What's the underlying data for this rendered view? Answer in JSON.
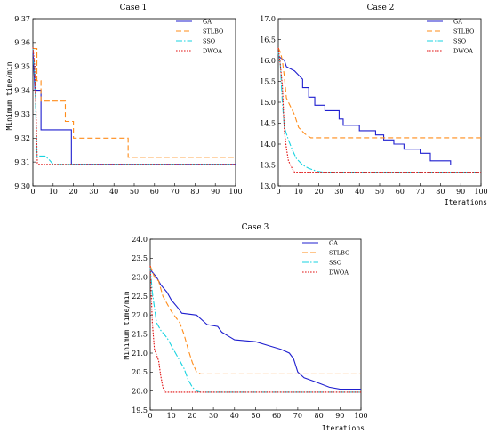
{
  "series_styles": {
    "GA": {
      "color": "#1f1fcf",
      "dash": ""
    },
    "STLBO": {
      "color": "#ff8c1a",
      "dash": "6,3"
    },
    "SSO": {
      "color": "#19d3e0",
      "dash": "7,2,1.5,2"
    },
    "DWOA": {
      "color": "#e01010",
      "dash": "1.6,1.4"
    }
  },
  "chart_data": [
    {
      "type": "line",
      "title": "Case 1",
      "xlabel": "",
      "ylabel": "Minimum time/min",
      "xlim": [
        0,
        100
      ],
      "ylim": [
        9.3,
        9.37
      ],
      "xticks": [
        0,
        10,
        20,
        30,
        40,
        50,
        60,
        70,
        80,
        90,
        100
      ],
      "yticks": [
        "9.30",
        "9.31",
        "9.32",
        "9.33",
        "9.34",
        "9.35",
        "9.36",
        "9.37"
      ],
      "legend": "top-right",
      "series": [
        {
          "name": "GA",
          "points": [
            [
              0,
              9.357
            ],
            [
              1,
              9.34
            ],
            [
              4,
              9.34
            ],
            [
              4,
              9.3235
            ],
            [
              19,
              9.3235
            ],
            [
              19,
              9.309
            ],
            [
              100,
              9.309
            ]
          ]
        },
        {
          "name": "STLBO",
          "points": [
            [
              0,
              9.3575
            ],
            [
              2,
              9.3575
            ],
            [
              2,
              9.344
            ],
            [
              4,
              9.344
            ],
            [
              4,
              9.3355
            ],
            [
              16,
              9.3355
            ],
            [
              16,
              9.327
            ],
            [
              20,
              9.327
            ],
            [
              20,
              9.32
            ],
            [
              47,
              9.32
            ],
            [
              47,
              9.312
            ],
            [
              100,
              9.312
            ]
          ]
        },
        {
          "name": "SSO",
          "points": [
            [
              0,
              9.358
            ],
            [
              1,
              9.345
            ],
            [
              2,
              9.3125
            ],
            [
              6,
              9.3125
            ],
            [
              8,
              9.311
            ],
            [
              10,
              9.309
            ],
            [
              100,
              9.309
            ]
          ]
        },
        {
          "name": "DWOA",
          "points": [
            [
              0,
              9.358
            ],
            [
              0.8,
              9.351
            ],
            [
              1.5,
              9.333
            ],
            [
              2.2,
              9.3095
            ],
            [
              3,
              9.309
            ],
            [
              100,
              9.309
            ]
          ]
        }
      ]
    },
    {
      "type": "line",
      "title": "Case 2",
      "xlabel": "Iterations",
      "ylabel": "",
      "xlim": [
        0,
        100
      ],
      "ylim": [
        13.0,
        17.0
      ],
      "xticks": [
        0,
        10,
        20,
        30,
        40,
        50,
        60,
        70,
        80,
        90,
        100
      ],
      "yticks": [
        "13.0",
        "13.5",
        "14.0",
        "14.5",
        "15.0",
        "15.5",
        "16.0",
        "16.5",
        "17.0"
      ],
      "legend": "top-right",
      "series": [
        {
          "name": "GA",
          "points": [
            [
              0,
              16.1
            ],
            [
              3,
              16.0
            ],
            [
              4,
              15.85
            ],
            [
              8,
              15.75
            ],
            [
              10,
              15.65
            ],
            [
              12,
              15.55
            ],
            [
              12,
              15.35
            ],
            [
              15,
              15.35
            ],
            [
              15,
              15.12
            ],
            [
              18,
              15.12
            ],
            [
              18,
              14.93
            ],
            [
              23,
              14.93
            ],
            [
              23,
              14.8
            ],
            [
              30,
              14.8
            ],
            [
              30,
              14.6
            ],
            [
              32,
              14.6
            ],
            [
              32,
              14.45
            ],
            [
              40,
              14.45
            ],
            [
              40,
              14.32
            ],
            [
              48,
              14.32
            ],
            [
              48,
              14.22
            ],
            [
              52,
              14.22
            ],
            [
              52,
              14.1
            ],
            [
              57,
              14.1
            ],
            [
              57,
              14.0
            ],
            [
              62,
              14.0
            ],
            [
              62,
              13.88
            ],
            [
              70,
              13.88
            ],
            [
              70,
              13.78
            ],
            [
              75,
              13.78
            ],
            [
              75,
              13.6
            ],
            [
              85,
              13.6
            ],
            [
              85,
              13.5
            ],
            [
              100,
              13.5
            ]
          ]
        },
        {
          "name": "STLBO",
          "points": [
            [
              0,
              16.3
            ],
            [
              1,
              16.2
            ],
            [
              2,
              16.0
            ],
            [
              3,
              15.6
            ],
            [
              4,
              15.1
            ],
            [
              6,
              14.9
            ],
            [
              8,
              14.7
            ],
            [
              10,
              14.4
            ],
            [
              13,
              14.25
            ],
            [
              16,
              14.15
            ],
            [
              100,
              14.15
            ]
          ]
        },
        {
          "name": "SSO",
          "points": [
            [
              0,
              16.2
            ],
            [
              1,
              15.9
            ],
            [
              2,
              15.0
            ],
            [
              3,
              14.4
            ],
            [
              5,
              14.1
            ],
            [
              7,
              13.85
            ],
            [
              9,
              13.65
            ],
            [
              12,
              13.5
            ],
            [
              15,
              13.42
            ],
            [
              19,
              13.35
            ],
            [
              22,
              13.33
            ],
            [
              100,
              13.33
            ]
          ]
        },
        {
          "name": "DWOA",
          "points": [
            [
              0,
              16.3
            ],
            [
              1,
              15.9
            ],
            [
              2,
              15.4
            ],
            [
              3,
              14.3
            ],
            [
              4,
              13.9
            ],
            [
              5,
              13.6
            ],
            [
              6,
              13.5
            ],
            [
              7,
              13.4
            ],
            [
              8,
              13.33
            ],
            [
              100,
              13.33
            ]
          ]
        }
      ]
    },
    {
      "type": "line",
      "title": "Case 3",
      "xlabel": "Iterations",
      "ylabel": "Minimum time/min",
      "xlim": [
        0,
        100
      ],
      "ylim": [
        19.5,
        24.0
      ],
      "xticks": [
        0,
        10,
        20,
        30,
        40,
        50,
        60,
        70,
        80,
        90,
        100
      ],
      "yticks": [
        "19.5",
        "20.0",
        "20.5",
        "21.0",
        "21.5",
        "22.0",
        "22.5",
        "23.0",
        "23.5",
        "24.0"
      ],
      "legend": "top-right",
      "series": [
        {
          "name": "GA",
          "points": [
            [
              0,
              23.2
            ],
            [
              3,
              23.0
            ],
            [
              5,
              22.8
            ],
            [
              8,
              22.6
            ],
            [
              10,
              22.4
            ],
            [
              13,
              22.2
            ],
            [
              15,
              22.05
            ],
            [
              22,
              22.0
            ],
            [
              25,
              21.85
            ],
            [
              27,
              21.75
            ],
            [
              32,
              21.7
            ],
            [
              34,
              21.55
            ],
            [
              37,
              21.45
            ],
            [
              40,
              21.35
            ],
            [
              50,
              21.3
            ],
            [
              56,
              21.2
            ],
            [
              62,
              21.1
            ],
            [
              66,
              21.0
            ],
            [
              68,
              20.85
            ],
            [
              70,
              20.5
            ],
            [
              73,
              20.35
            ],
            [
              78,
              20.25
            ],
            [
              85,
              20.1
            ],
            [
              90,
              20.05
            ],
            [
              100,
              20.05
            ]
          ]
        },
        {
          "name": "STLBO",
          "points": [
            [
              0,
              23.3
            ],
            [
              2,
              23.0
            ],
            [
              4,
              22.9
            ],
            [
              6,
              22.5
            ],
            [
              8,
              22.3
            ],
            [
              10,
              22.1
            ],
            [
              14,
              21.8
            ],
            [
              16,
              21.5
            ],
            [
              18,
              21.1
            ],
            [
              20,
              20.75
            ],
            [
              22,
              20.5
            ],
            [
              24,
              20.45
            ],
            [
              100,
              20.45
            ]
          ]
        },
        {
          "name": "SSO",
          "points": [
            [
              0,
              23.25
            ],
            [
              1,
              22.6
            ],
            [
              2,
              22.2
            ],
            [
              3,
              21.8
            ],
            [
              5,
              21.6
            ],
            [
              8,
              21.4
            ],
            [
              10,
              21.2
            ],
            [
              12,
              21.0
            ],
            [
              14,
              20.8
            ],
            [
              16,
              20.6
            ],
            [
              18,
              20.3
            ],
            [
              20,
              20.1
            ],
            [
              22,
              20.0
            ],
            [
              24,
              19.97
            ],
            [
              100,
              19.97
            ]
          ]
        },
        {
          "name": "DWOA",
          "points": [
            [
              0,
              23.3
            ],
            [
              1,
              21.8
            ],
            [
              2,
              21.1
            ],
            [
              4,
              20.8
            ],
            [
              5,
              20.4
            ],
            [
              6,
              20.1
            ],
            [
              7,
              19.97
            ],
            [
              100,
              19.97
            ]
          ]
        }
      ]
    }
  ]
}
